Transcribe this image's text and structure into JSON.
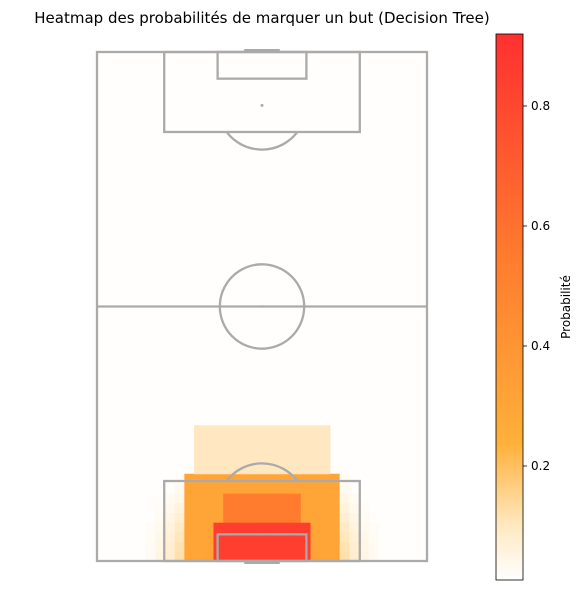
{
  "chart_data": {
    "type": "heatmap",
    "title": "Heatmap des probabilités de marquer un but (Decision Tree)",
    "colorbar": {
      "label": "Probabilité",
      "range": [
        0.01,
        0.92
      ],
      "ticks": [
        0.2,
        0.4,
        0.6,
        0.8
      ],
      "tick_labels": [
        "0.2",
        "0.4",
        "0.6",
        "0.8"
      ],
      "colors": [
        "#ffffff",
        "#ffe8c0",
        "#ffb03a",
        "#ff7a2e",
        "#ff3030"
      ]
    },
    "pitch": {
      "line_color": "#aaaaaa",
      "attacking_goal": "bottom",
      "length_m": 105,
      "width_m": 68
    },
    "grid": {
      "x_bins": 34,
      "y_bins": 26,
      "x_range_m": [
        0,
        68
      ],
      "y_range_m": [
        0,
        52
      ],
      "y_origin": "goal line",
      "value_fn": {
        "background": 0.015,
        "zones": [
          {
            "name": "six-yard box",
            "x_range_m": [
              24,
              44
            ],
            "y_range_m": [
              0,
              8
            ],
            "probability": 0.85
          },
          {
            "name": "central penalty area",
            "x_range_m": [
              27,
              41
            ],
            "y_range_m": [
              0,
              14
            ],
            "probability": 0.55
          },
          {
            "name": "penalty area",
            "x_range_m": [
              18,
              50
            ],
            "y_range_m": [
              0,
              18
            ],
            "probability": 0.3
          },
          {
            "name": "arc outside box",
            "x_range_m": [
              20,
              48
            ],
            "y_range_m": [
              0,
              28
            ],
            "probability": 0.1
          }
        ]
      }
    }
  }
}
